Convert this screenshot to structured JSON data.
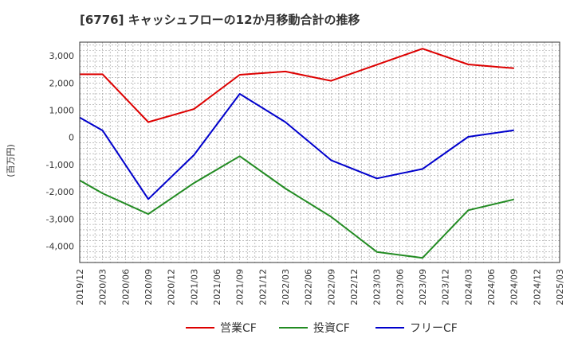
{
  "chart_data": {
    "type": "line",
    "title": "[6776]  キャッシュフローの12か月移動合計の推移",
    "ylabel": "(百万円)",
    "xlabel": "",
    "ylim": [
      -4600,
      3500
    ],
    "yticks": [
      3000,
      2000,
      1000,
      0,
      -1000,
      -2000,
      -3000,
      -4000
    ],
    "ytick_labels": [
      "3,000",
      "2,000",
      "1,000",
      "0",
      "-1,000",
      "-2,000",
      "-3,000",
      "-4,000"
    ],
    "categories": [
      "2019/12",
      "2020/03",
      "2020/06",
      "2020/09",
      "2020/12",
      "2021/03",
      "2021/06",
      "2021/09",
      "2021/12",
      "2022/03",
      "2022/06",
      "2022/09",
      "2022/12",
      "2023/03",
      "2023/06",
      "2023/09",
      "2023/12",
      "2024/03",
      "2024/06",
      "2024/09",
      "2024/12",
      "2025/03"
    ],
    "grid": true,
    "legend_position": "bottom",
    "series": [
      {
        "name": "営業CF",
        "color": "#dd0000",
        "values": [
          2320,
          2320,
          null,
          560,
          null,
          1040,
          null,
          2300,
          null,
          2420,
          null,
          2080,
          null,
          null,
          null,
          3260,
          null,
          2680,
          null,
          2540,
          null,
          null
        ]
      },
      {
        "name": "投資CF",
        "color": "#228b22",
        "values": [
          -1580,
          -2060,
          null,
          -2820,
          null,
          -1680,
          null,
          -690,
          null,
          -1880,
          null,
          -2920,
          null,
          -4210,
          null,
          -4430,
          null,
          -2680,
          null,
          -2280,
          null,
          null
        ]
      },
      {
        "name": "フリーCF",
        "color": "#0000cc",
        "values": [
          730,
          250,
          null,
          -2270,
          null,
          -650,
          null,
          1600,
          null,
          560,
          null,
          -840,
          null,
          -1510,
          null,
          -1160,
          null,
          20,
          null,
          260,
          null,
          null
        ]
      }
    ]
  }
}
